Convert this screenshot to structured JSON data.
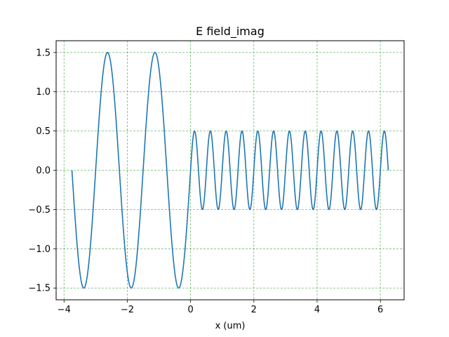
{
  "chart_data": {
    "type": "line",
    "title": "E field_imag",
    "xlabel": "x (um)",
    "ylabel": "",
    "xlim": [
      -4.25,
      6.75
    ],
    "ylim": [
      -1.65,
      1.65
    ],
    "xticks": [
      -4,
      -2,
      0,
      2,
      4,
      6
    ],
    "xtick_labels": [
      "−4",
      "−2",
      "0",
      "2",
      "4",
      "6"
    ],
    "yticks": [
      -1.5,
      -1.0,
      -0.5,
      0.0,
      0.5,
      1.0,
      1.5
    ],
    "ytick_labels": [
      "−1.5",
      "−1.0",
      "−0.5",
      "0.0",
      "0.5",
      "1.0",
      "1.5"
    ],
    "grid": true,
    "legend": "none",
    "colors": {
      "line": "#1f77b4",
      "grid": "#2ca02c",
      "axes": "#000000"
    },
    "series": [
      {
        "x_range": [
          -3.75,
          6.25
        ],
        "segments": [
          {
            "x_start": -3.75,
            "x_end": 0.0,
            "amplitude": 1.5,
            "period": 1.5,
            "sign": -1
          },
          {
            "x_start": 0.0,
            "x_end": 6.25,
            "amplitude": 0.5,
            "period": 0.5,
            "sign": 1
          }
        ],
        "x": [
          -3.75,
          -3.375,
          -3.0,
          -2.625,
          -2.25,
          -1.875,
          -1.5,
          -1.125,
          -0.75,
          -0.375,
          0.0,
          0.125,
          0.25,
          0.375,
          0.5,
          1.0,
          2.0,
          3.0,
          4.0,
          5.0,
          6.0,
          6.125,
          6.25
        ],
        "y": [
          0.0,
          -1.5,
          0.0,
          1.5,
          0.0,
          -1.5,
          0.0,
          1.5,
          0.0,
          -1.5,
          0.0,
          0.5,
          0.0,
          -0.5,
          0.0,
          0.0,
          0.0,
          0.0,
          0.0,
          0.0,
          0.0,
          0.5,
          0.0
        ]
      }
    ]
  }
}
